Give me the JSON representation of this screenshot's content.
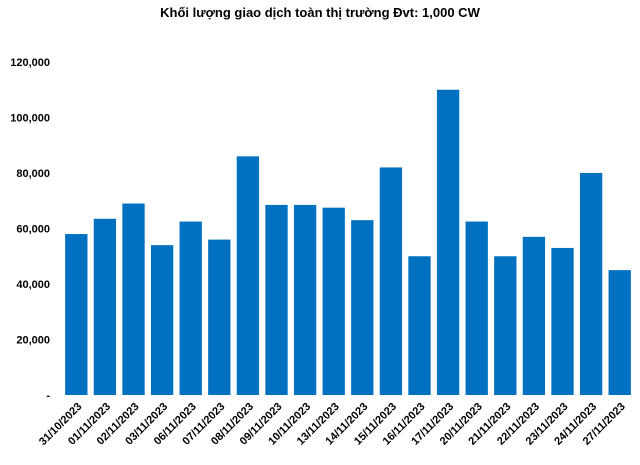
{
  "chart_data": {
    "type": "bar",
    "title": "Khối lượng giao dịch toàn thị trường Đvt: 1,000 CW",
    "xlabel": "",
    "ylabel": "",
    "ylim": [
      0,
      120000
    ],
    "y_ticks": [
      "-",
      "20,000",
      "40,000",
      "60,000",
      "80,000",
      "100,000",
      "120,000"
    ],
    "grid": false,
    "bar_color": "#0070C0",
    "categories": [
      "31/10/2023",
      "01/11/2023",
      "02/11/2023",
      "03/11/2023",
      "06/11/2023",
      "07/11/2023",
      "08/11/2023",
      "09/11/2023",
      "10/11/2023",
      "13/11/2023",
      "14/11/2023",
      "15/11/2023",
      "16/11/2023",
      "17/11/2023",
      "20/11/2023",
      "21/11/2023",
      "22/11/2023",
      "23/11/2023",
      "24/11/2023",
      "27/11/2023"
    ],
    "values": [
      58000,
      63500,
      69000,
      54000,
      62500,
      56000,
      86000,
      68500,
      68500,
      67500,
      63000,
      82000,
      50000,
      110000,
      62500,
      50000,
      57000,
      53000,
      80000,
      45000
    ]
  }
}
